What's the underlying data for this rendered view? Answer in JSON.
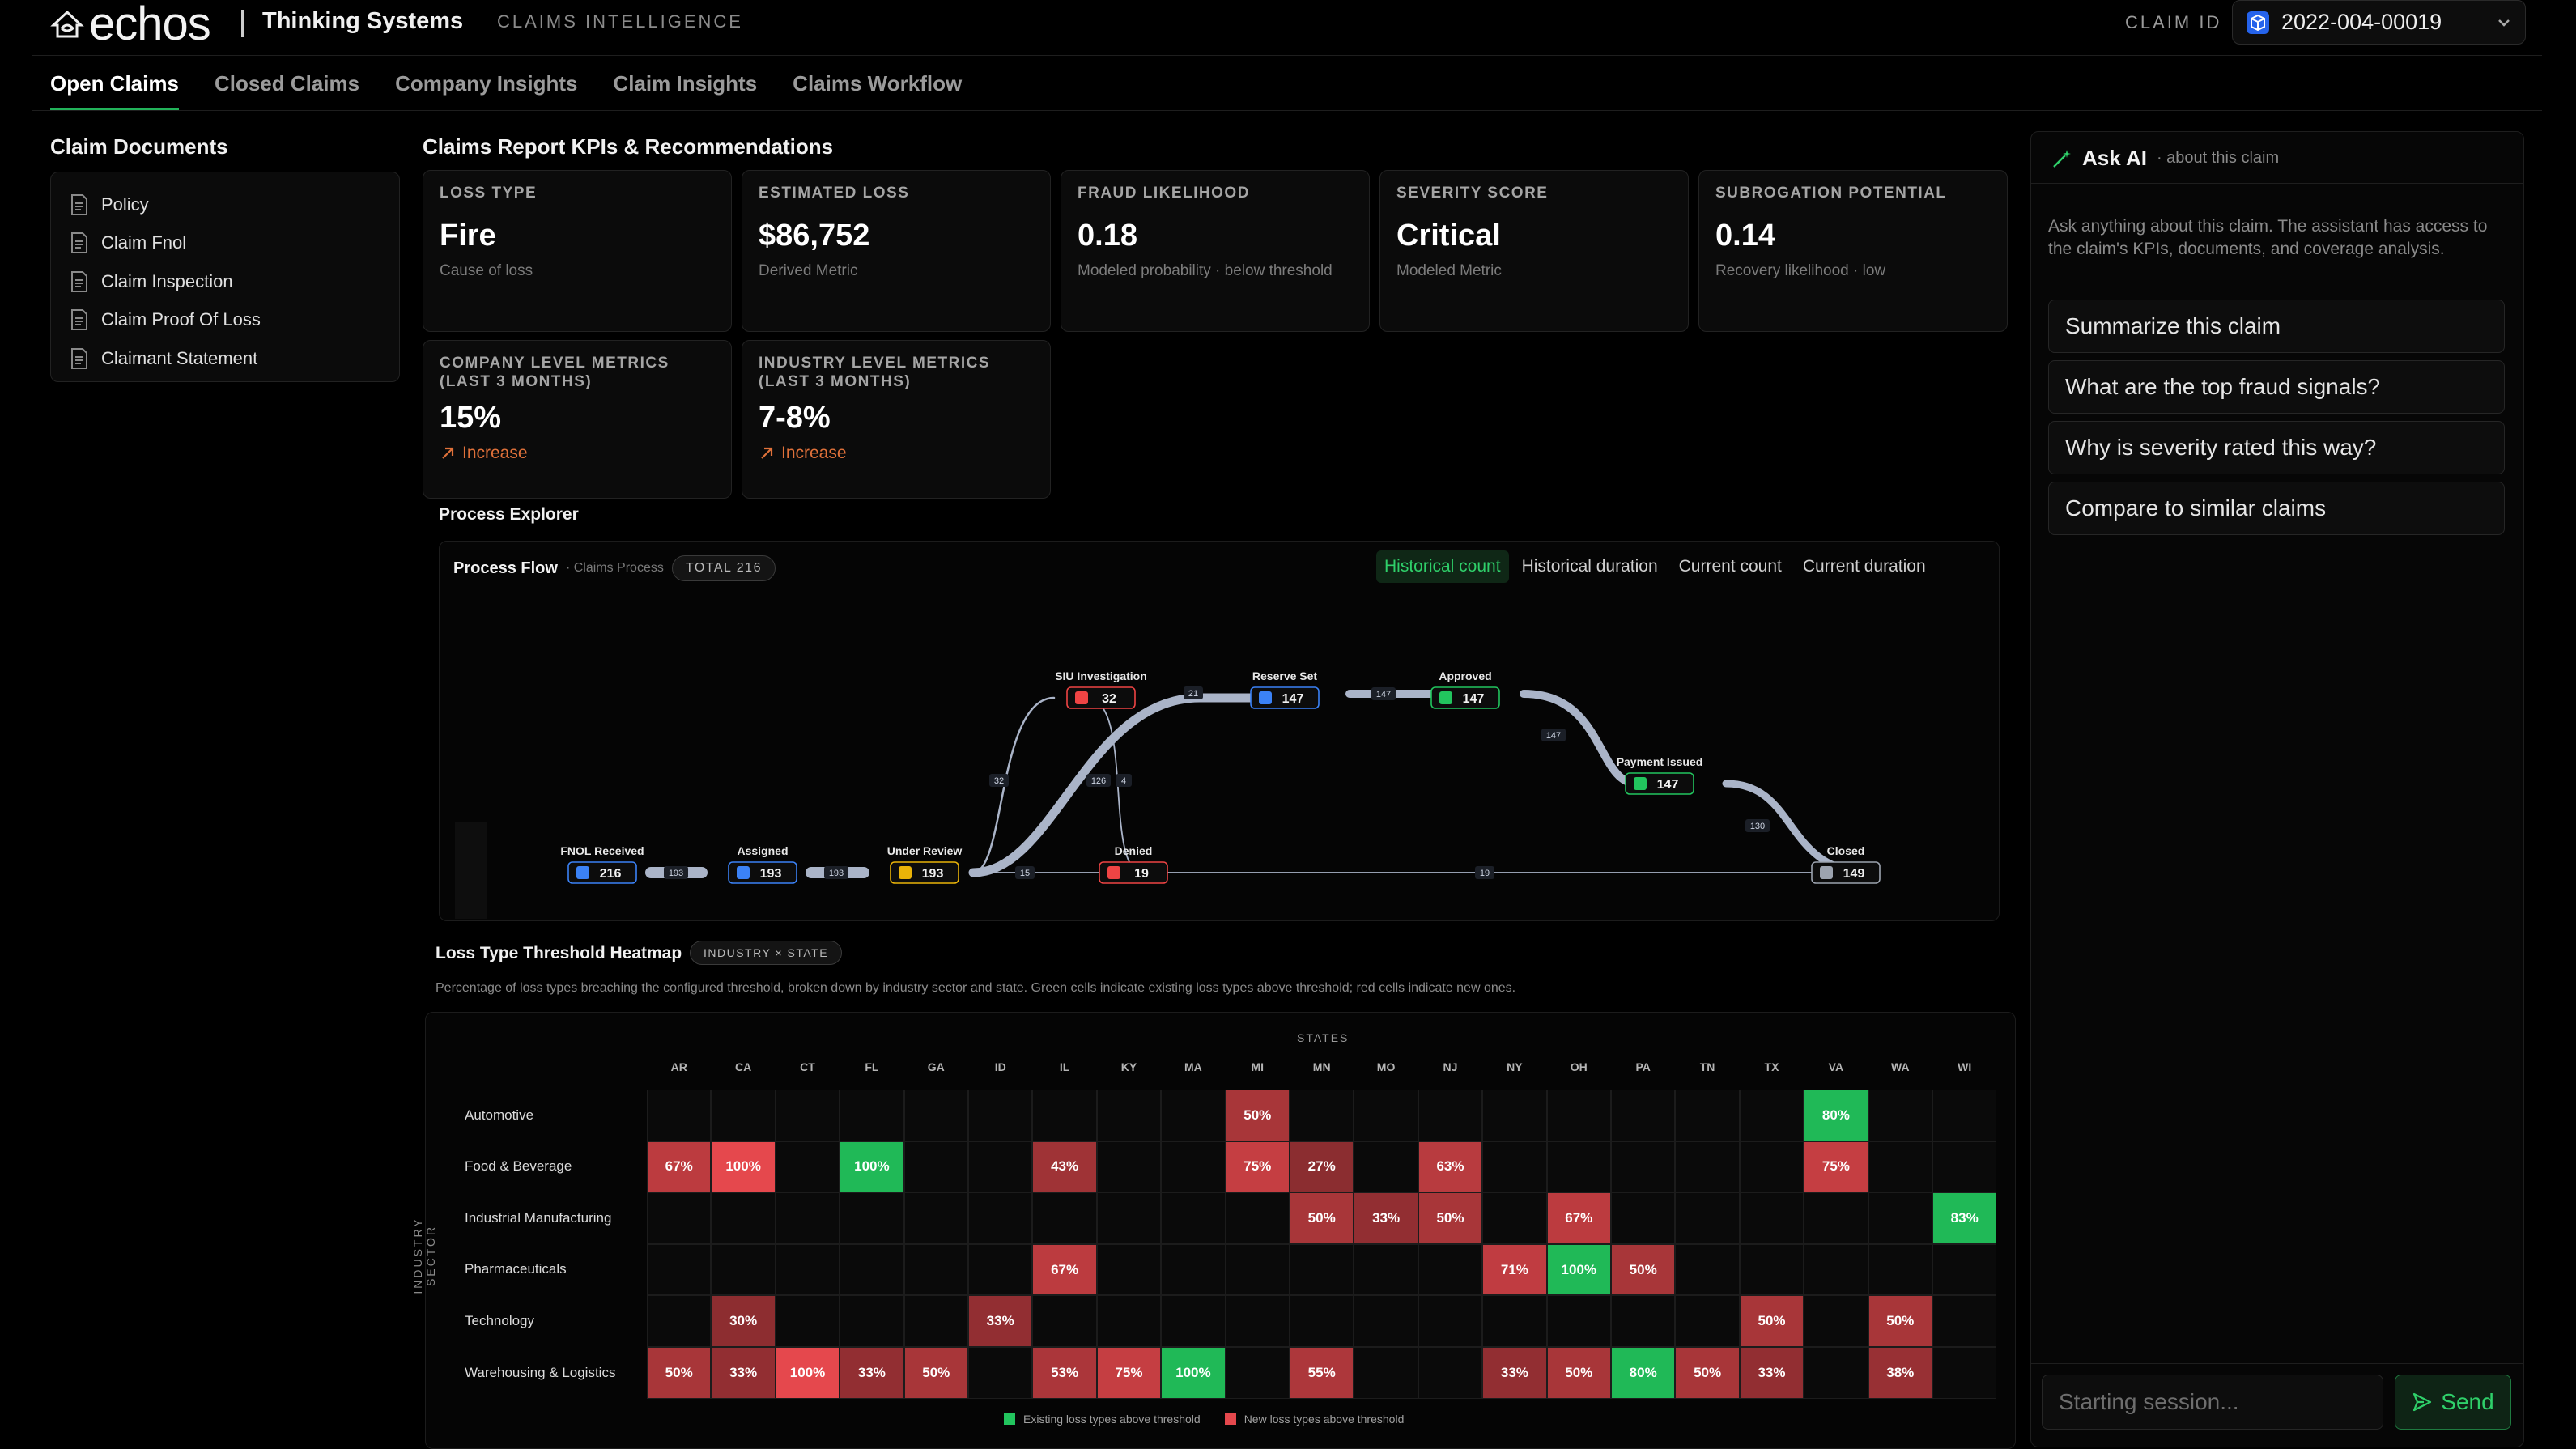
{
  "header": {
    "brand": "echos",
    "company": "Thinking Systems",
    "app_name": "CLAIMS INTELLIGENCE",
    "claim_id_label": "CLAIM ID",
    "claim_id_value": "2022-004-00019"
  },
  "tabs": [
    {
      "label": "Open Claims",
      "active": true
    },
    {
      "label": "Closed Claims"
    },
    {
      "label": "Company Insights"
    },
    {
      "label": "Claim Insights"
    },
    {
      "label": "Claims Workflow"
    }
  ],
  "documents": {
    "title": "Claim Documents",
    "items": [
      "Policy",
      "Claim Fnol",
      "Claim Inspection",
      "Claim Proof Of Loss",
      "Claimant Statement"
    ]
  },
  "kpis": {
    "title": "Claims Report KPIs & Recommendations",
    "cards": [
      {
        "label": "LOSS TYPE",
        "value": "Fire",
        "sub": "Cause of loss"
      },
      {
        "label": "ESTIMATED LOSS",
        "value": "$86,752",
        "sub": "Derived Metric"
      },
      {
        "label": "FRAUD LIKELIHOOD",
        "value": "0.18",
        "sub": "Modeled probability · below threshold"
      },
      {
        "label": "SEVERITY SCORE",
        "value": "Critical",
        "sub": "Modeled Metric"
      },
      {
        "label": "SUBROGATION POTENTIAL",
        "value": "0.14",
        "sub": "Recovery likelihood · low"
      }
    ],
    "metrics": [
      {
        "label": "COMPANY LEVEL METRICS (LAST 3 MONTHS)",
        "value": "15%",
        "trend": "Increase"
      },
      {
        "label": "INDUSTRY LEVEL METRICS (LAST 3 MONTHS)",
        "value": "7-8%",
        "trend": "Increase"
      }
    ]
  },
  "process": {
    "section_title": "Process Explorer",
    "title": "Process Flow",
    "subtitle": "· Claims Process",
    "total": "TOTAL 216",
    "modes": [
      "Historical count",
      "Historical duration",
      "Current count",
      "Current duration"
    ],
    "active_mode": 0,
    "nodes": [
      {
        "id": "fnol",
        "label": "FNOL Received",
        "count": "216",
        "color": "#3b82f6"
      },
      {
        "id": "assigned",
        "label": "Assigned",
        "count": "193",
        "color": "#3b82f6"
      },
      {
        "id": "review",
        "label": "Under Review",
        "count": "193",
        "color": "#eab308"
      },
      {
        "id": "siu",
        "label": "SIU Investigation",
        "count": "32",
        "color": "#ef4444"
      },
      {
        "id": "denied",
        "label": "Denied",
        "count": "19",
        "color": "#ef4444"
      },
      {
        "id": "reserve",
        "label": "Reserve Set",
        "count": "147",
        "color": "#3b82f6"
      },
      {
        "id": "approved",
        "label": "Approved",
        "count": "147",
        "color": "#22c55e"
      },
      {
        "id": "payment",
        "label": "Payment Issued",
        "count": "147",
        "color": "#22c55e"
      },
      {
        "id": "closed",
        "label": "Closed",
        "count": "149",
        "color": "#9ca3af"
      }
    ],
    "edge_labels": [
      "193",
      "193",
      "32",
      "126",
      "4",
      "15",
      "21",
      "147",
      "147",
      "130",
      "19"
    ]
  },
  "heatmap": {
    "title": "Loss Type Threshold Heatmap",
    "pill": "INDUSTRY × STATE",
    "description": "Percentage of loss types breaching the configured threshold, broken down by industry sector and state. Green cells indicate existing loss types above threshold; red cells indicate new ones.",
    "x_title": "STATES",
    "y_title": "INDUSTRY SECTOR",
    "states": [
      "AR",
      "CA",
      "CT",
      "FL",
      "GA",
      "ID",
      "IL",
      "KY",
      "MA",
      "MI",
      "MN",
      "MO",
      "NJ",
      "NY",
      "OH",
      "PA",
      "TN",
      "TX",
      "VA",
      "WA",
      "WI"
    ],
    "sectors": [
      "Automotive",
      "Food & Beverage",
      "Industrial Manufacturing",
      "Pharmaceuticals",
      "Technology",
      "Warehousing & Logistics"
    ],
    "cells": [
      [
        null,
        null,
        null,
        null,
        null,
        null,
        null,
        null,
        null,
        [
          "50%",
          "r"
        ],
        null,
        null,
        null,
        null,
        null,
        null,
        null,
        null,
        [
          "80%",
          "g"
        ],
        null,
        null
      ],
      [
        [
          "67%",
          "r"
        ],
        [
          "100%",
          "r"
        ],
        null,
        [
          "100%",
          "g"
        ],
        null,
        null,
        [
          "43%",
          "r"
        ],
        null,
        null,
        [
          "75%",
          "r"
        ],
        [
          "27%",
          "r"
        ],
        null,
        [
          "63%",
          "r"
        ],
        null,
        null,
        null,
        null,
        null,
        [
          "75%",
          "r"
        ],
        null,
        null
      ],
      [
        null,
        null,
        null,
        null,
        null,
        null,
        null,
        null,
        null,
        null,
        [
          "50%",
          "r"
        ],
        [
          "33%",
          "r"
        ],
        [
          "50%",
          "r"
        ],
        null,
        [
          "67%",
          "r"
        ],
        null,
        null,
        null,
        null,
        null,
        [
          "83%",
          "g"
        ]
      ],
      [
        null,
        null,
        null,
        null,
        null,
        null,
        [
          "67%",
          "r"
        ],
        null,
        null,
        null,
        null,
        null,
        null,
        [
          "71%",
          "r"
        ],
        [
          "100%",
          "g"
        ],
        [
          "50%",
          "r"
        ],
        null,
        null,
        null,
        null,
        null
      ],
      [
        null,
        [
          "30%",
          "r"
        ],
        null,
        null,
        null,
        [
          "33%",
          "r"
        ],
        null,
        null,
        null,
        null,
        null,
        null,
        null,
        null,
        null,
        null,
        null,
        [
          "50%",
          "r"
        ],
        null,
        [
          "50%",
          "r"
        ],
        null
      ],
      [
        [
          "50%",
          "r"
        ],
        [
          "33%",
          "r"
        ],
        [
          "100%",
          "r"
        ],
        [
          "33%",
          "r"
        ],
        [
          "50%",
          "r"
        ],
        null,
        [
          "53%",
          "r"
        ],
        [
          "75%",
          "r"
        ],
        [
          "100%",
          "g"
        ],
        null,
        [
          "55%",
          "r"
        ],
        null,
        null,
        [
          "33%",
          "r"
        ],
        [
          "50%",
          "r"
        ],
        [
          "80%",
          "g"
        ],
        [
          "50%",
          "r"
        ],
        [
          "33%",
          "r"
        ],
        null,
        [
          "38%",
          "r"
        ],
        null
      ]
    ],
    "legend": {
      "existing": "Existing loss types above threshold",
      "new": "New loss types above threshold"
    }
  },
  "ai": {
    "title": "Ask AI",
    "subtitle": "· about this claim",
    "description": "Ask anything about this claim. The assistant has access to the claim's KPIs, documents, and coverage analysis.",
    "suggestions": [
      "Summarize this claim",
      "What are the top fraud signals?",
      "Why is severity rated this way?",
      "Compare to similar claims"
    ],
    "input_placeholder": "Starting session...",
    "send_label": "Send"
  },
  "colors": {
    "accent": "#22b35a",
    "green_cell": "#22c55e",
    "red_cell": "#dc3c3c"
  }
}
